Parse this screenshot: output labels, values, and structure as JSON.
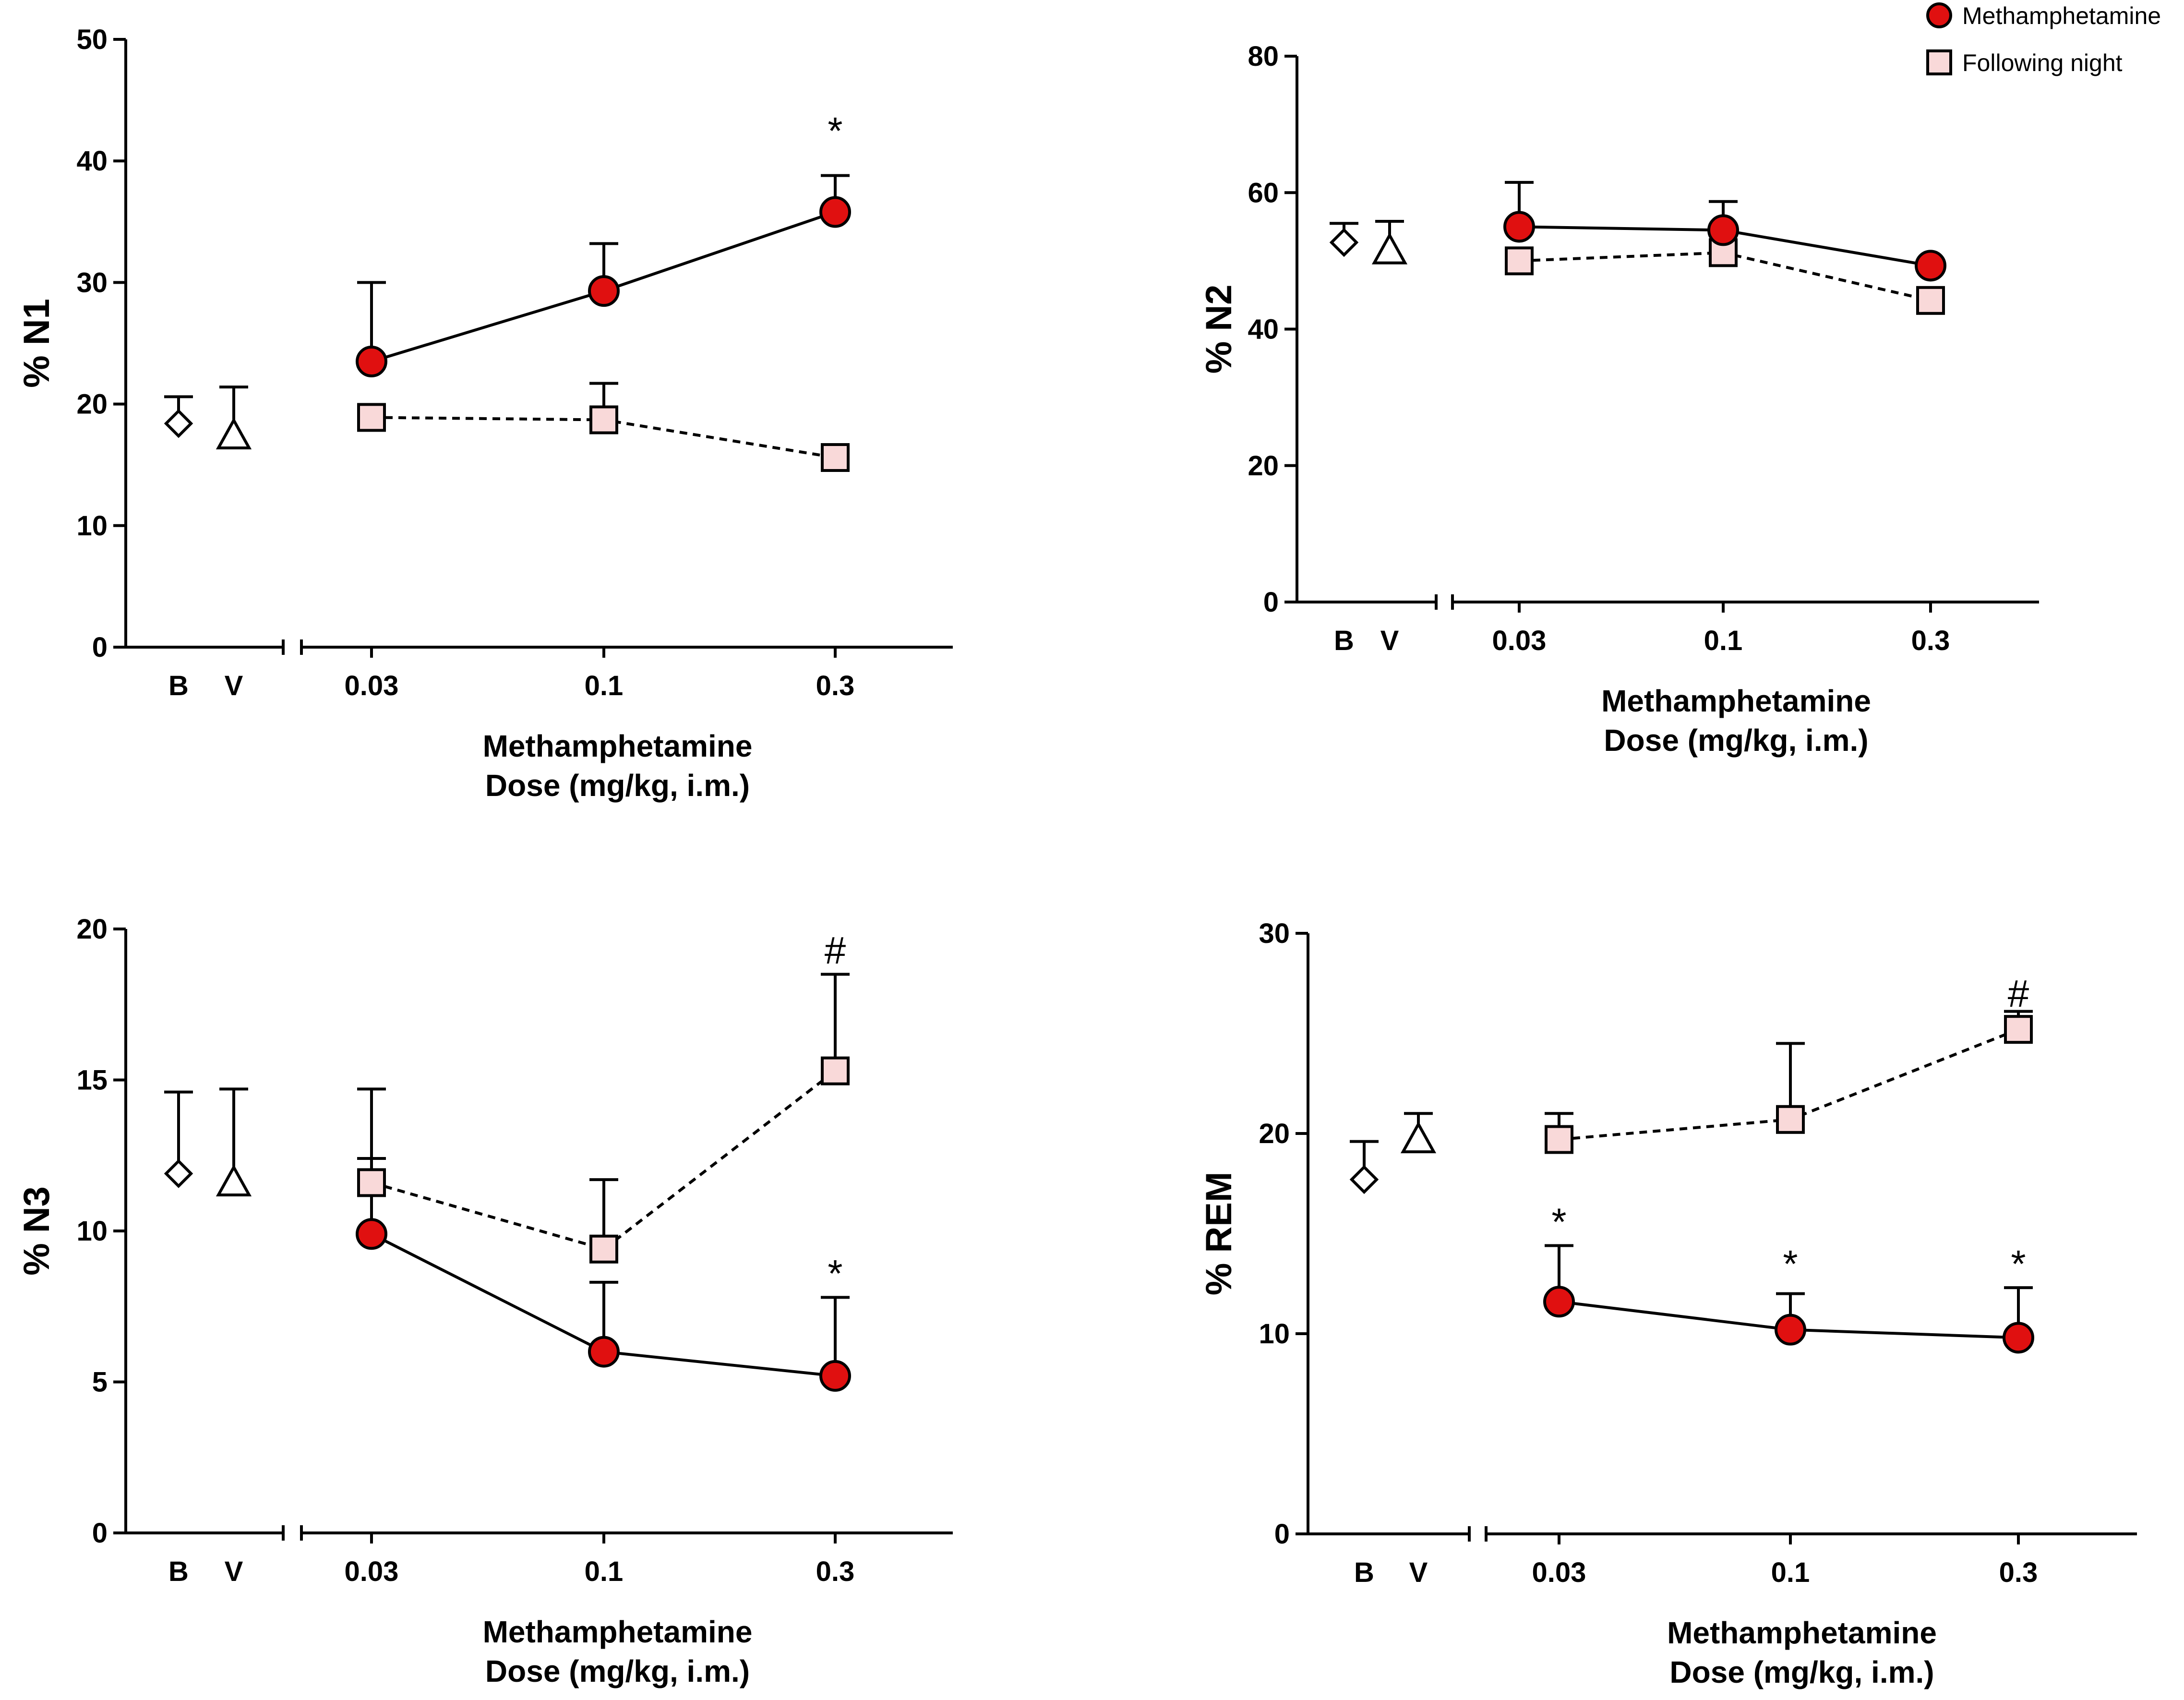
{
  "legend": {
    "items": [
      {
        "label": "Methamphetamine",
        "marker": "circle",
        "fill": "#e01010"
      },
      {
        "label": "Following night",
        "marker": "square",
        "fill": "#f9d9d9"
      }
    ]
  },
  "colors": {
    "meth": "#e01010",
    "night": "#f9d9d9",
    "axis": "#000000"
  },
  "chart_data": [
    {
      "type": "line",
      "ylabel": "% N1",
      "xlabel_line1": "Methamphetamine",
      "xlabel_line2": "Dose (mg/kg, i.m.)",
      "ylim": [
        0,
        50
      ],
      "yticks": [
        0,
        10,
        20,
        30,
        40,
        50
      ],
      "control_categories": [
        "B",
        "V"
      ],
      "dose_categories": [
        "0.03",
        "0.1",
        "0.3"
      ],
      "controls": {
        "B": {
          "value": 18.4,
          "err": 2.2
        },
        "V": {
          "value": 17.4,
          "err": 4.0
        }
      },
      "series": [
        {
          "name": "Methamphetamine",
          "values": [
            23.5,
            29.3,
            35.8
          ],
          "errors": [
            6.5,
            3.9,
            3.0
          ]
        },
        {
          "name": "Following night",
          "values": [
            18.9,
            18.7,
            15.6
          ],
          "errors": [
            0,
            3.0,
            0
          ]
        }
      ],
      "annotations": [
        {
          "dose_index": 2,
          "text": "*",
          "y": 42.5
        }
      ]
    },
    {
      "type": "line",
      "ylabel": "% N2",
      "xlabel_line1": "Methamphetamine",
      "xlabel_line2": "Dose (mg/kg, i.m.)",
      "ylim": [
        0,
        80
      ],
      "yticks": [
        0,
        20,
        40,
        60,
        80
      ],
      "control_categories": [
        "B",
        "V"
      ],
      "dose_categories": [
        "0.03",
        "0.1",
        "0.3"
      ],
      "controls": {
        "B": {
          "value": 52.7,
          "err": 2.8
        },
        "V": {
          "value": 51.5,
          "err": 4.3
        }
      },
      "series": [
        {
          "name": "Methamphetamine",
          "values": [
            55.0,
            54.5,
            49.3
          ],
          "errors": [
            6.5,
            4.2,
            0
          ]
        },
        {
          "name": "Following night",
          "values": [
            50.0,
            51.2,
            44.2
          ],
          "errors": [
            0,
            0,
            0
          ]
        }
      ],
      "annotations": []
    },
    {
      "type": "line",
      "ylabel": "% N3",
      "xlabel_line1": "Methamphetamine",
      "xlabel_line2": "Dose (mg/kg, i.m.)",
      "ylim": [
        0,
        20
      ],
      "yticks": [
        0,
        5,
        10,
        15,
        20
      ],
      "control_categories": [
        "B",
        "V"
      ],
      "dose_categories": [
        "0.03",
        "0.1",
        "0.3"
      ],
      "controls": {
        "B": {
          "value": 11.9,
          "err": 2.7
        },
        "V": {
          "value": 11.6,
          "err": 3.1
        }
      },
      "series": [
        {
          "name": "Methamphetamine",
          "values": [
            9.9,
            6.0,
            5.2
          ],
          "errors": [
            2.5,
            2.3,
            2.6
          ]
        },
        {
          "name": "Following night",
          "values": [
            11.6,
            9.4,
            15.3
          ],
          "errors": [
            3.1,
            2.3,
            3.2
          ]
        }
      ],
      "annotations": [
        {
          "dose_index": 2,
          "text": "#",
          "y": 19.3
        },
        {
          "dose_index": 2,
          "text": "*",
          "y": 8.6
        }
      ]
    },
    {
      "type": "line",
      "ylabel": "% REM",
      "xlabel_line1": "Methamphetamine",
      "xlabel_line2": "Dose (mg/kg, i.m.)",
      "ylim": [
        0,
        30
      ],
      "yticks": [
        0,
        10,
        20,
        30
      ],
      "control_categories": [
        "B",
        "V"
      ],
      "dose_categories": [
        "0.03",
        "0.1",
        "0.3"
      ],
      "controls": {
        "B": {
          "value": 17.7,
          "err": 1.9
        },
        "V": {
          "value": 19.7,
          "err": 1.3
        }
      },
      "series": [
        {
          "name": "Methamphetamine",
          "values": [
            11.6,
            10.2,
            9.8
          ],
          "errors": [
            2.8,
            1.8,
            2.5
          ]
        },
        {
          "name": "Following night",
          "values": [
            19.7,
            20.7,
            25.2
          ],
          "errors": [
            1.3,
            3.8,
            0.9
          ]
        }
      ],
      "annotations": [
        {
          "dose_index": 0,
          "text": "*",
          "y": 15.6
        },
        {
          "dose_index": 1,
          "text": "*",
          "y": 13.5
        },
        {
          "dose_index": 2,
          "text": "*",
          "y": 13.5
        },
        {
          "dose_index": 2,
          "text": "#",
          "y": 27.0
        }
      ]
    }
  ]
}
